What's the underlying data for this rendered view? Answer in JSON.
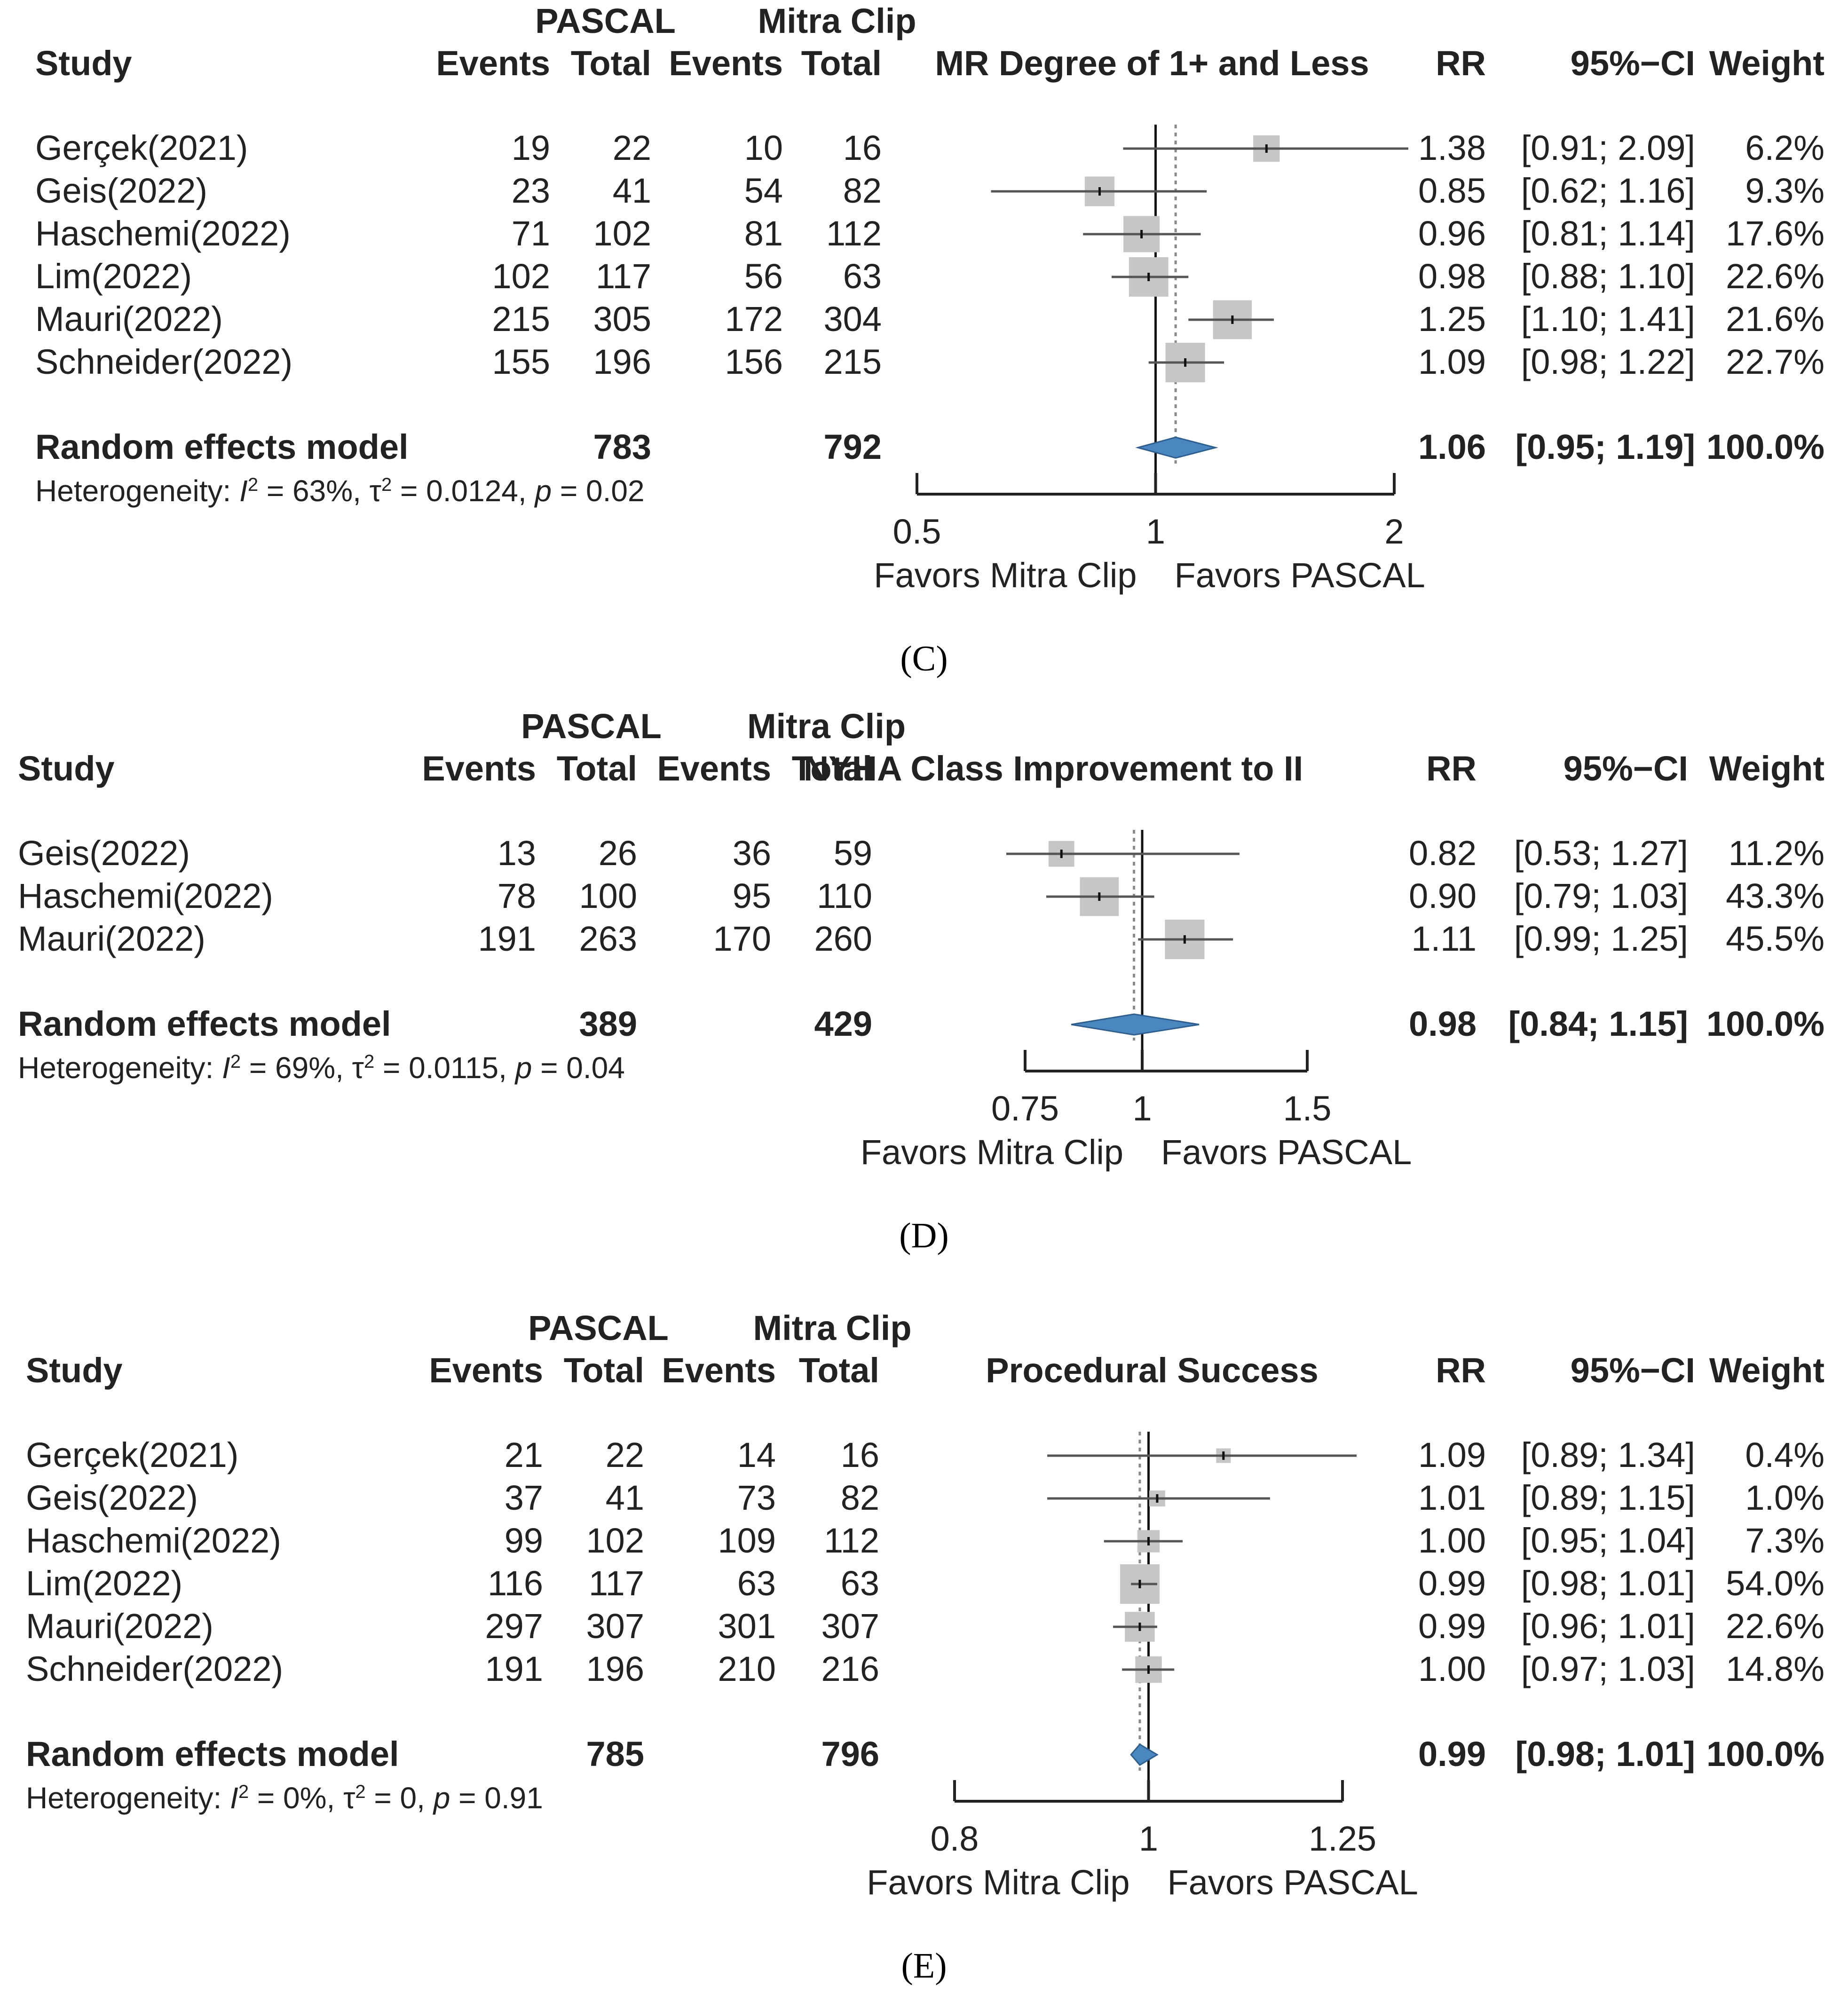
{
  "headers": {
    "study": "Study",
    "group1": "PASCAL",
    "group2": "Mitra Clip",
    "events": "Events",
    "total": "Total",
    "rr": "RR",
    "ci": "95%−CI",
    "weight": "Weight"
  },
  "colors": {
    "square": "#c6c6c6",
    "diamond": "#4a86c0",
    "ci_line": "#555555",
    "text": "#222222"
  },
  "chart_data": [
    {
      "type": "forest",
      "panel_label": "(C)",
      "outcome": "MR Degree of 1+ and Less",
      "scale": "log",
      "ticks": [
        "0.5",
        "1",
        "2"
      ],
      "xlim": [
        0.5,
        2
      ],
      "favors_left": "Favors Mitra Clip",
      "favors_right": "Favors PASCAL",
      "studies": [
        {
          "name": "Gerçek(2021)",
          "e1": "19",
          "t1": "22",
          "e2": "10",
          "t2": "16",
          "rr": 1.38,
          "lo": 0.91,
          "hi": 2.09,
          "rr_text": "1.38",
          "ci_text": "[0.91; 2.09]",
          "weight": 6.2,
          "weight_text": "6.2%"
        },
        {
          "name": "Geis(2022)",
          "e1": "23",
          "t1": "41",
          "e2": "54",
          "t2": "82",
          "rr": 0.85,
          "lo": 0.62,
          "hi": 1.16,
          "rr_text": "0.85",
          "ci_text": "[0.62; 1.16]",
          "weight": 9.3,
          "weight_text": "9.3%"
        },
        {
          "name": "Haschemi(2022)",
          "e1": "71",
          "t1": "102",
          "e2": "81",
          "t2": "112",
          "rr": 0.96,
          "lo": 0.81,
          "hi": 1.14,
          "rr_text": "0.96",
          "ci_text": "[0.81; 1.14]",
          "weight": 17.6,
          "weight_text": "17.6%"
        },
        {
          "name": "Lim(2022)",
          "e1": "102",
          "t1": "117",
          "e2": "56",
          "t2": "63",
          "rr": 0.98,
          "lo": 0.88,
          "hi": 1.1,
          "rr_text": "0.98",
          "ci_text": "[0.88; 1.10]",
          "weight": 22.6,
          "weight_text": "22.6%"
        },
        {
          "name": "Mauri(2022)",
          "e1": "215",
          "t1": "305",
          "e2": "172",
          "t2": "304",
          "rr": 1.25,
          "lo": 1.1,
          "hi": 1.41,
          "rr_text": "1.25",
          "ci_text": "[1.10; 1.41]",
          "weight": 21.6,
          "weight_text": "21.6%"
        },
        {
          "name": "Schneider(2022)",
          "e1": "155",
          "t1": "196",
          "e2": "156",
          "t2": "215",
          "rr": 1.09,
          "lo": 0.98,
          "hi": 1.22,
          "rr_text": "1.09",
          "ci_text": "[0.98; 1.22]",
          "weight": 22.7,
          "weight_text": "22.7%"
        }
      ],
      "pooled": {
        "label": "Random effects model",
        "t1": "783",
        "t2": "792",
        "rr": 1.06,
        "lo": 0.95,
        "hi": 1.19,
        "rr_text": "1.06",
        "ci_text": "[0.95; 1.19]",
        "weight_text": "100.0%"
      },
      "heterogeneity": {
        "prefix": "Heterogeneity: ",
        "i2": "I",
        "i2_value": " = 63%, ",
        "tau2_value": " = 0.0124, ",
        "p": "p",
        "p_value": " = 0.02"
      }
    },
    {
      "type": "forest",
      "panel_label": "(D)",
      "outcome": "NYHA Class Improvement to II",
      "scale": "log",
      "ticks": [
        "0.75",
        "1",
        "1.5"
      ],
      "xlim": [
        0.75,
        1.5
      ],
      "favors_left": "Favors Mitra Clip",
      "favors_right": "Favors PASCAL",
      "studies": [
        {
          "name": "Geis(2022)",
          "e1": "13",
          "t1": "26",
          "e2": "36",
          "t2": "59",
          "rr": 0.82,
          "lo": 0.53,
          "hi": 1.27,
          "rr_text": "0.82",
          "ci_text": "[0.53; 1.27]",
          "weight": 11.2,
          "weight_text": "11.2%"
        },
        {
          "name": "Haschemi(2022)",
          "e1": "78",
          "t1": "100",
          "e2": "95",
          "t2": "110",
          "rr": 0.9,
          "lo": 0.79,
          "hi": 1.03,
          "rr_text": "0.90",
          "ci_text": "[0.79; 1.03]",
          "weight": 43.3,
          "weight_text": "43.3%"
        },
        {
          "name": "Mauri(2022)",
          "e1": "191",
          "t1": "263",
          "e2": "170",
          "t2": "260",
          "rr": 1.11,
          "lo": 0.99,
          "hi": 1.25,
          "rr_text": "1.11",
          "ci_text": "[0.99; 1.25]",
          "weight": 45.5,
          "weight_text": "45.5%"
        }
      ],
      "pooled": {
        "label": "Random effects model",
        "t1": "389",
        "t2": "429",
        "rr": 0.98,
        "lo": 0.84,
        "hi": 1.15,
        "rr_text": "0.98",
        "ci_text": "[0.84; 1.15]",
        "weight_text": "100.0%"
      },
      "heterogeneity": {
        "prefix": "Heterogeneity: ",
        "i2": "I",
        "i2_value": " = 69%, ",
        "tau2_value": " = 0.0115, ",
        "p": "p",
        "p_value": " = 0.04"
      }
    },
    {
      "type": "forest",
      "panel_label": "(E)",
      "outcome": "Procedural Success",
      "scale": "log",
      "ticks": [
        "0.8",
        "1",
        "1.25"
      ],
      "xlim": [
        0.8,
        1.25
      ],
      "favors_left": "Favors Mitra Clip",
      "favors_right": "Favors PASCAL",
      "studies": [
        {
          "name": "Gerçek(2021)",
          "e1": "21",
          "t1": "22",
          "e2": "14",
          "t2": "16",
          "rr": 1.09,
          "lo": 0.89,
          "hi": 1.34,
          "rr_text": "1.09",
          "ci_text": "[0.89; 1.34]",
          "weight": 0.4,
          "weight_text": "0.4%"
        },
        {
          "name": "Geis(2022)",
          "e1": "37",
          "t1": "41",
          "e2": "73",
          "t2": "82",
          "rr": 1.01,
          "lo": 0.89,
          "hi": 1.15,
          "rr_text": "1.01",
          "ci_text": "[0.89; 1.15]",
          "weight": 1.0,
          "weight_text": "1.0%"
        },
        {
          "name": "Haschemi(2022)",
          "e1": "99",
          "t1": "102",
          "e2": "109",
          "t2": "112",
          "rr": 1.0,
          "lo": 0.95,
          "hi": 1.04,
          "rr_text": "1.00",
          "ci_text": "[0.95; 1.04]",
          "weight": 7.3,
          "weight_text": "7.3%"
        },
        {
          "name": "Lim(2022)",
          "e1": "116",
          "t1": "117",
          "e2": "63",
          "t2": "63",
          "rr": 0.99,
          "lo": 0.98,
          "hi": 1.01,
          "rr_text": "0.99",
          "ci_text": "[0.98; 1.01]",
          "weight": 54.0,
          "weight_text": "54.0%"
        },
        {
          "name": "Mauri(2022)",
          "e1": "297",
          "t1": "307",
          "e2": "301",
          "t2": "307",
          "rr": 0.99,
          "lo": 0.96,
          "hi": 1.01,
          "rr_text": "0.99",
          "ci_text": "[0.96; 1.01]",
          "weight": 22.6,
          "weight_text": "22.6%"
        },
        {
          "name": "Schneider(2022)",
          "e1": "191",
          "t1": "196",
          "e2": "210",
          "t2": "216",
          "rr": 1.0,
          "lo": 0.97,
          "hi": 1.03,
          "rr_text": "1.00",
          "ci_text": "[0.97; 1.03]",
          "weight": 14.8,
          "weight_text": "14.8%"
        }
      ],
      "pooled": {
        "label": "Random effects model",
        "t1": "785",
        "t2": "796",
        "rr": 0.99,
        "lo": 0.98,
        "hi": 1.01,
        "rr_text": "0.99",
        "ci_text": "[0.98; 1.01]",
        "weight_text": "100.0%"
      },
      "heterogeneity": {
        "prefix": "Heterogeneity: ",
        "i2": "I",
        "i2_value": " = 0%, ",
        "tau2_value": " = 0, ",
        "p": "p",
        "p_value": " = 0.91"
      }
    }
  ]
}
